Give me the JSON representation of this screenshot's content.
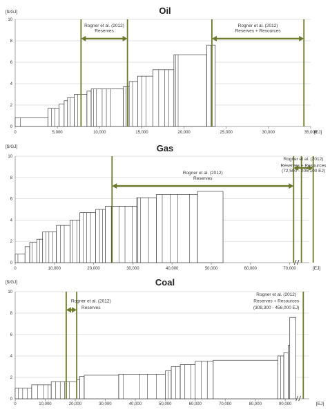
{
  "chart_data": [
    {
      "type": "bar",
      "title": "Oil",
      "ylabel": "[$/GJ]",
      "xlabel": "[EJ]",
      "ylim": [
        0,
        10
      ],
      "yticks": [
        "0",
        "2",
        "4",
        "6",
        "8",
        "10"
      ],
      "xlim": [
        0,
        35000
      ],
      "xticks": [
        "0",
        "5,000",
        "10,000",
        "15,000",
        "20,000",
        "25,000",
        "30,000",
        "35,000"
      ],
      "grid": true,
      "steps": [
        {
          "start": 0,
          "end": 3900,
          "value": 0.8,
          "divs": [
            600
          ]
        },
        {
          "start": 3900,
          "end": 5200,
          "value": 1.7,
          "divs": [
            4300,
            4700
          ]
        },
        {
          "start": 5200,
          "end": 5800,
          "value": 2.1,
          "divs": []
        },
        {
          "start": 5800,
          "end": 6200,
          "value": 2.4,
          "divs": []
        },
        {
          "start": 6200,
          "end": 7000,
          "value": 2.7,
          "divs": [
            6500
          ]
        },
        {
          "start": 7000,
          "end": 8500,
          "value": 3.0,
          "divs": [
            7400,
            7800
          ]
        },
        {
          "start": 8500,
          "end": 9000,
          "value": 3.3,
          "divs": []
        },
        {
          "start": 9000,
          "end": 12800,
          "value": 3.5,
          "divs": [
            9300,
            9600,
            10300,
            10800,
            11300
          ]
        },
        {
          "start": 12800,
          "end": 13500,
          "value": 3.7,
          "divs": [
            13100
          ]
        },
        {
          "start": 13500,
          "end": 14500,
          "value": 4.2,
          "divs": [
            13900
          ]
        },
        {
          "start": 14500,
          "end": 16300,
          "value": 4.7,
          "divs": [
            15000,
            15500
          ]
        },
        {
          "start": 16300,
          "end": 18800,
          "value": 5.3,
          "divs": [
            17000,
            17700,
            18200
          ]
        },
        {
          "start": 18800,
          "end": 22700,
          "value": 6.7,
          "divs": [
            19000,
            19300
          ]
        },
        {
          "start": 22700,
          "end": 23700,
          "value": 7.6,
          "divs": [
            23200
          ]
        }
      ],
      "marker_lines": [
        7800,
        13300,
        23300,
        34200
      ],
      "annotations": [
        {
          "text": "Rogner et al. (2012)",
          "range": [
            7800,
            13300
          ],
          "y": 9.3
        },
        {
          "text": "Reserves",
          "range": [
            7800,
            13300
          ],
          "y": 8.8
        },
        {
          "text": "Rogner et al. (2012)",
          "range": [
            23300,
            34200
          ],
          "y": 9.3
        },
        {
          "text": "Reserves + Resources",
          "range": [
            23300,
            34200
          ],
          "y": 8.8
        }
      ],
      "arrows": [
        {
          "from": 7800,
          "to": 13300,
          "y": 8.2
        },
        {
          "from": 23300,
          "to": 34200,
          "y": 8.2
        }
      ]
    },
    {
      "type": "bar",
      "title": "Gas",
      "ylabel": "[$/GJ]",
      "xlabel": "[EJ]",
      "ylim": [
        0,
        10
      ],
      "yticks": [
        "0",
        "2",
        "4",
        "6",
        "8",
        "10"
      ],
      "xlim": [
        0,
        75000
      ],
      "xticks": [
        "0",
        "10,000",
        "20,000",
        "30,000",
        "40,000",
        "50,000",
        "60,000",
        "70,000"
      ],
      "break_at": 71500,
      "grid": true,
      "steps": [
        {
          "start": 0,
          "end": 2500,
          "value": 0.8,
          "divs": [
            700
          ]
        },
        {
          "start": 2500,
          "end": 3700,
          "value": 1.5,
          "divs": []
        },
        {
          "start": 3700,
          "end": 5500,
          "value": 1.9,
          "divs": [
            4300
          ]
        },
        {
          "start": 5500,
          "end": 7000,
          "value": 2.2,
          "divs": [
            6200
          ]
        },
        {
          "start": 7000,
          "end": 10500,
          "value": 2.9,
          "divs": [
            7800,
            8600,
            9600
          ]
        },
        {
          "start": 10500,
          "end": 14000,
          "value": 3.5,
          "divs": [
            11500,
            12500
          ]
        },
        {
          "start": 14000,
          "end": 16500,
          "value": 4.0,
          "divs": [
            14700,
            15700
          ]
        },
        {
          "start": 16500,
          "end": 20500,
          "value": 4.7,
          "divs": [
            17300,
            18200,
            19200
          ]
        },
        {
          "start": 20500,
          "end": 23000,
          "value": 5.0,
          "divs": [
            21500,
            22300
          ]
        },
        {
          "start": 23000,
          "end": 31000,
          "value": 5.3,
          "divs": [
            24500,
            26500,
            28000,
            29800
          ]
        },
        {
          "start": 31000,
          "end": 36000,
          "value": 6.1,
          "divs": [
            31300,
            32000,
            34000
          ]
        },
        {
          "start": 36000,
          "end": 46500,
          "value": 6.4,
          "divs": [
            37500,
            39500,
            41500,
            44500
          ]
        },
        {
          "start": 46500,
          "end": 53000,
          "value": 6.7,
          "divs": []
        }
      ],
      "marker_lines": [
        24700,
        71000,
        73000,
        76000
      ],
      "annotations": [
        {
          "text": "Rogner et al. (2012)",
          "range": [
            24700,
            71000
          ],
          "y": 8.3
        },
        {
          "text": "Reserves",
          "range": [
            24700,
            71000
          ],
          "y": 7.8
        },
        {
          "text": "Rogner et al. (2012)",
          "range": [
            71000,
            76000
          ],
          "y": 9.6
        },
        {
          "text": "Reserves + Resources",
          "range": [
            71000,
            76000
          ],
          "y": 9.0
        },
        {
          "text": "(72,500 - 205,100 EJ)",
          "range": [
            71000,
            76000
          ],
          "y": 8.5
        }
      ],
      "arrows": [
        {
          "from": 24700,
          "to": 71000,
          "y": 7.2
        },
        {
          "from": 71000,
          "to": 76000,
          "y": 8.9
        }
      ]
    },
    {
      "type": "bar",
      "title": "Coal",
      "ylabel": "[$/GJ]",
      "xlabel": "[EJ]",
      "ylim": [
        0,
        10
      ],
      "yticks": [
        "0",
        "2",
        "4",
        "6",
        "8",
        "10"
      ],
      "xlim": [
        0,
        98000
      ],
      "xticks": [
        "0",
        "10,000",
        "20,000",
        "30,000",
        "40,000",
        "50,000",
        "60,000",
        "70,000",
        "80,000",
        "90,000"
      ],
      "break_at": 94000,
      "grid": true,
      "steps": [
        {
          "start": 0,
          "end": 5500,
          "value": 1.0,
          "divs": [
            1000,
            2500,
            4000
          ]
        },
        {
          "start": 5500,
          "end": 12000,
          "value": 1.3,
          "divs": [
            7500,
            9500,
            11000
          ]
        },
        {
          "start": 12000,
          "end": 20500,
          "value": 1.6,
          "divs": [
            13500,
            15000,
            16500,
            18000
          ]
        },
        {
          "start": 20500,
          "end": 21500,
          "value": 1.8,
          "divs": []
        },
        {
          "start": 21500,
          "end": 23000,
          "value": 2.1,
          "divs": []
        },
        {
          "start": 23000,
          "end": 34500,
          "value": 2.2,
          "divs": []
        },
        {
          "start": 34500,
          "end": 50000,
          "value": 2.3,
          "divs": [
            36000,
            41500,
            44000,
            47000
          ]
        },
        {
          "start": 50000,
          "end": 52000,
          "value": 2.6,
          "divs": [
            51000
          ]
        },
        {
          "start": 52000,
          "end": 55000,
          "value": 3.0,
          "divs": [
            53500
          ]
        },
        {
          "start": 55000,
          "end": 60000,
          "value": 3.2,
          "divs": [
            56500,
            58500
          ]
        },
        {
          "start": 60000,
          "end": 66000,
          "value": 3.5,
          "divs": [
            62000,
            64000
          ]
        },
        {
          "start": 66000,
          "end": 87500,
          "value": 3.6,
          "divs": []
        },
        {
          "start": 87500,
          "end": 89500,
          "value": 4.0,
          "divs": [
            88500
          ]
        },
        {
          "start": 89500,
          "end": 91000,
          "value": 4.3,
          "divs": []
        },
        {
          "start": 91000,
          "end": 91500,
          "value": 5.0,
          "divs": []
        },
        {
          "start": 91500,
          "end": 93500,
          "value": 7.6,
          "divs": []
        }
      ],
      "marker_lines": [
        17000,
        20500,
        96000
      ],
      "annotations": [
        {
          "text": "Rogner et al. (2012)",
          "range": [
            20500,
            30000
          ],
          "y": 9.0
        },
        {
          "text": "Reserves",
          "range": [
            20500,
            30000
          ],
          "y": 8.4
        },
        {
          "text": "Rogner et al. (2012)",
          "range": [
            78000,
            96000
          ],
          "y": 9.6
        },
        {
          "text": "Reserves + Resources",
          "range": [
            78000,
            96000
          ],
          "y": 9.0
        },
        {
          "text": "(308,300 - 456,000 EJ)",
          "range": [
            78000,
            96000
          ],
          "y": 8.4
        }
      ],
      "arrows": [
        {
          "from": 17000,
          "to": 20500,
          "y": 8.3
        }
      ]
    }
  ],
  "colors": {
    "marker": "#6b7a2a",
    "bar_stroke": "#1a1a1a",
    "grid": "#d6d6d6",
    "axis": "#8a8a8a"
  }
}
